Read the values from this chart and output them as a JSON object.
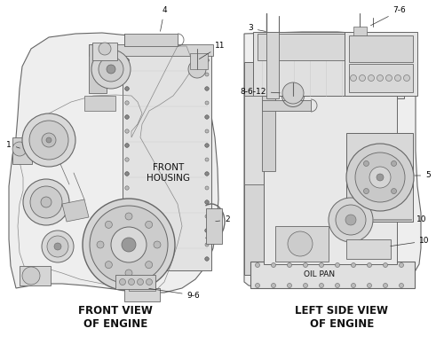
{
  "background_color": "#ffffff",
  "line_color": "#666666",
  "dark_color": "#444444",
  "light_gray": "#d8d8d8",
  "mid_gray": "#b8b8b8",
  "font_size_title": 9,
  "font_size_label": 6.5,
  "figsize": [
    5.0,
    3.88
  ],
  "dpi": 100,
  "front_view_title": "FRONT VIEW\nOF ENGINE",
  "left_view_title": "LEFT SIDE VIEW\nOF ENGINE",
  "front_housing_text": "FRONT\nHOUSING",
  "oil_pan_text": "OIL PAN"
}
